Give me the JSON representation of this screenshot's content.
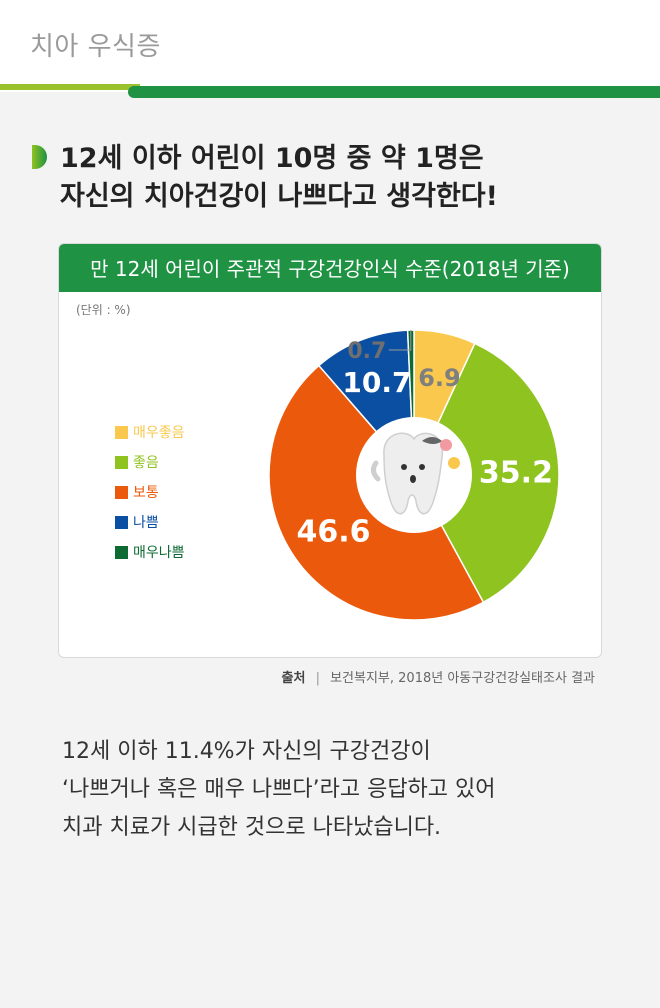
{
  "page_label": "치아 우식증",
  "heading": [
    "12세 이하 어린이 10명 중 약 1명은",
    "자신의 치아건강이 나쁘다고 생각한다!"
  ],
  "chart_data": {
    "type": "pie",
    "title": "만 12세 어린이 주관적 구강건강인식 수준(2018년 기준)",
    "unit_note": "(단위 : %)",
    "categories": [
      "매우좋음",
      "좋음",
      "보통",
      "나쁨",
      "매우나쁨"
    ],
    "values": [
      6.9,
      35.2,
      46.6,
      10.7,
      0.7
    ],
    "colors": [
      "#f9c84d",
      "#8fc31f",
      "#eb5a0c",
      "#0b4fa2",
      "#0d6a33"
    ],
    "label_colors": [
      "#7f7f7f",
      "#ffffff",
      "#ffffff",
      "#ffffff",
      "#6f6f6f"
    ],
    "legend_placement": "left"
  },
  "source": {
    "label": "출처",
    "separator": "|",
    "text": "보건복지부, 2018년 아동구강건강실태조사 결과"
  },
  "body_text": [
    "12세 이하 11.4%가 자신의 구강건강이",
    "‘나쁘거나 혹은 매우 나쁘다’라고 응답하고 있어",
    "치과 치료가 시급한 것으로 나타났습니다."
  ]
}
